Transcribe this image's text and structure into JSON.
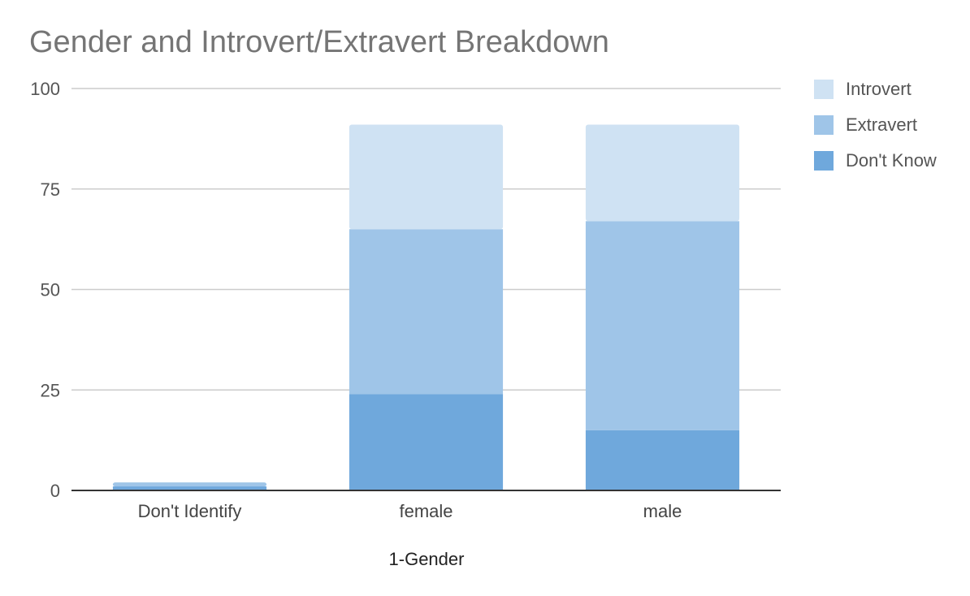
{
  "chart_data": {
    "type": "bar",
    "stacked": true,
    "title": "Gender and Introvert/Extravert Breakdown",
    "xlabel": "1-Gender",
    "ylabel": "",
    "ylim": [
      0,
      100
    ],
    "yticks": [
      0,
      25,
      50,
      75,
      100
    ],
    "grid": true,
    "legend_position": "right",
    "categories": [
      "Don't Identify",
      "female",
      "male"
    ],
    "series": [
      {
        "name": "Don't Know",
        "color": "#6fa8dc",
        "values": [
          1,
          24,
          15
        ]
      },
      {
        "name": "Extravert",
        "color": "#9fc5e8",
        "values": [
          1,
          41,
          52
        ]
      },
      {
        "name": "Introvert",
        "color": "#cfe2f3",
        "values": [
          0,
          26,
          24
        ]
      }
    ],
    "legend_order": [
      "Introvert",
      "Extravert",
      "Don't Know"
    ]
  }
}
